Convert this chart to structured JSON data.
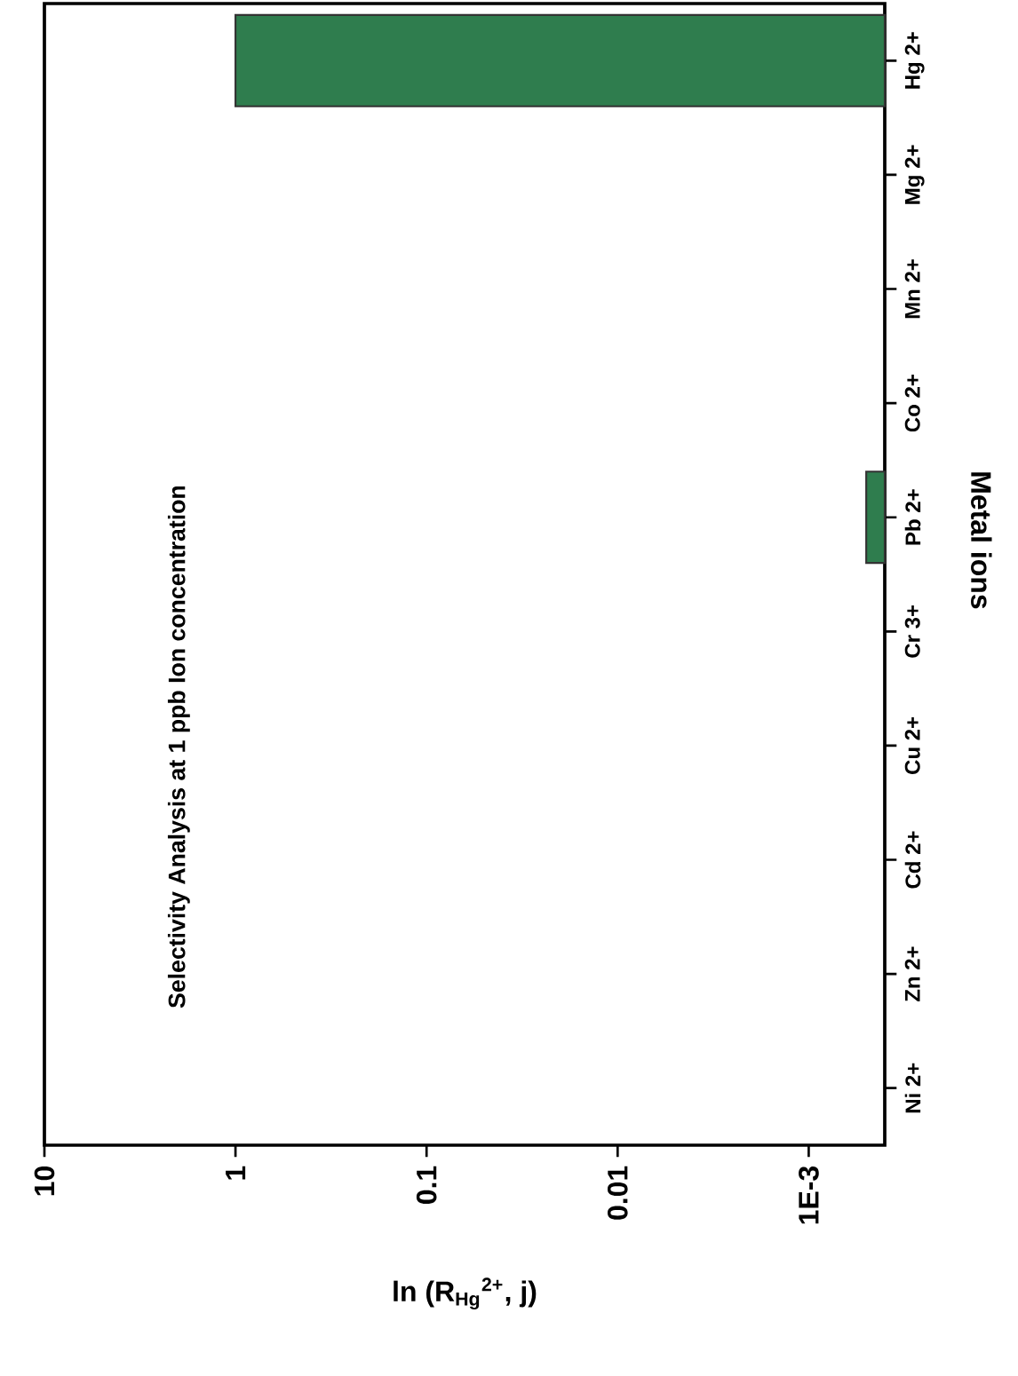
{
  "chart_data": {
    "type": "bar",
    "orientation": "horizontal",
    "title": "Selectivity Analysis at 1 ppb Ion concentration",
    "xlabel": "ln (R$_{Hg}$$^{2+}$, j)",
    "ylabel": "Metal ions",
    "categories": [
      "Hg 2+",
      "Mg 2+",
      "Mn 2+",
      "Co 2+",
      "Pb 2+",
      "Cr 3+",
      "Cu 2+",
      "Cd 2+",
      "Zn 2+",
      "Ni 2+"
    ],
    "values": [
      1,
      null,
      null,
      null,
      0.0005,
      null,
      null,
      null,
      null,
      null
    ],
    "color": "#2f7d4e",
    "log": "x",
    "xlim": [
      10,
      0.0004
    ],
    "xticks": [
      10,
      1,
      0.1,
      0.01,
      {
        "value": 0.001,
        "label": "1E-3"
      }
    ]
  }
}
